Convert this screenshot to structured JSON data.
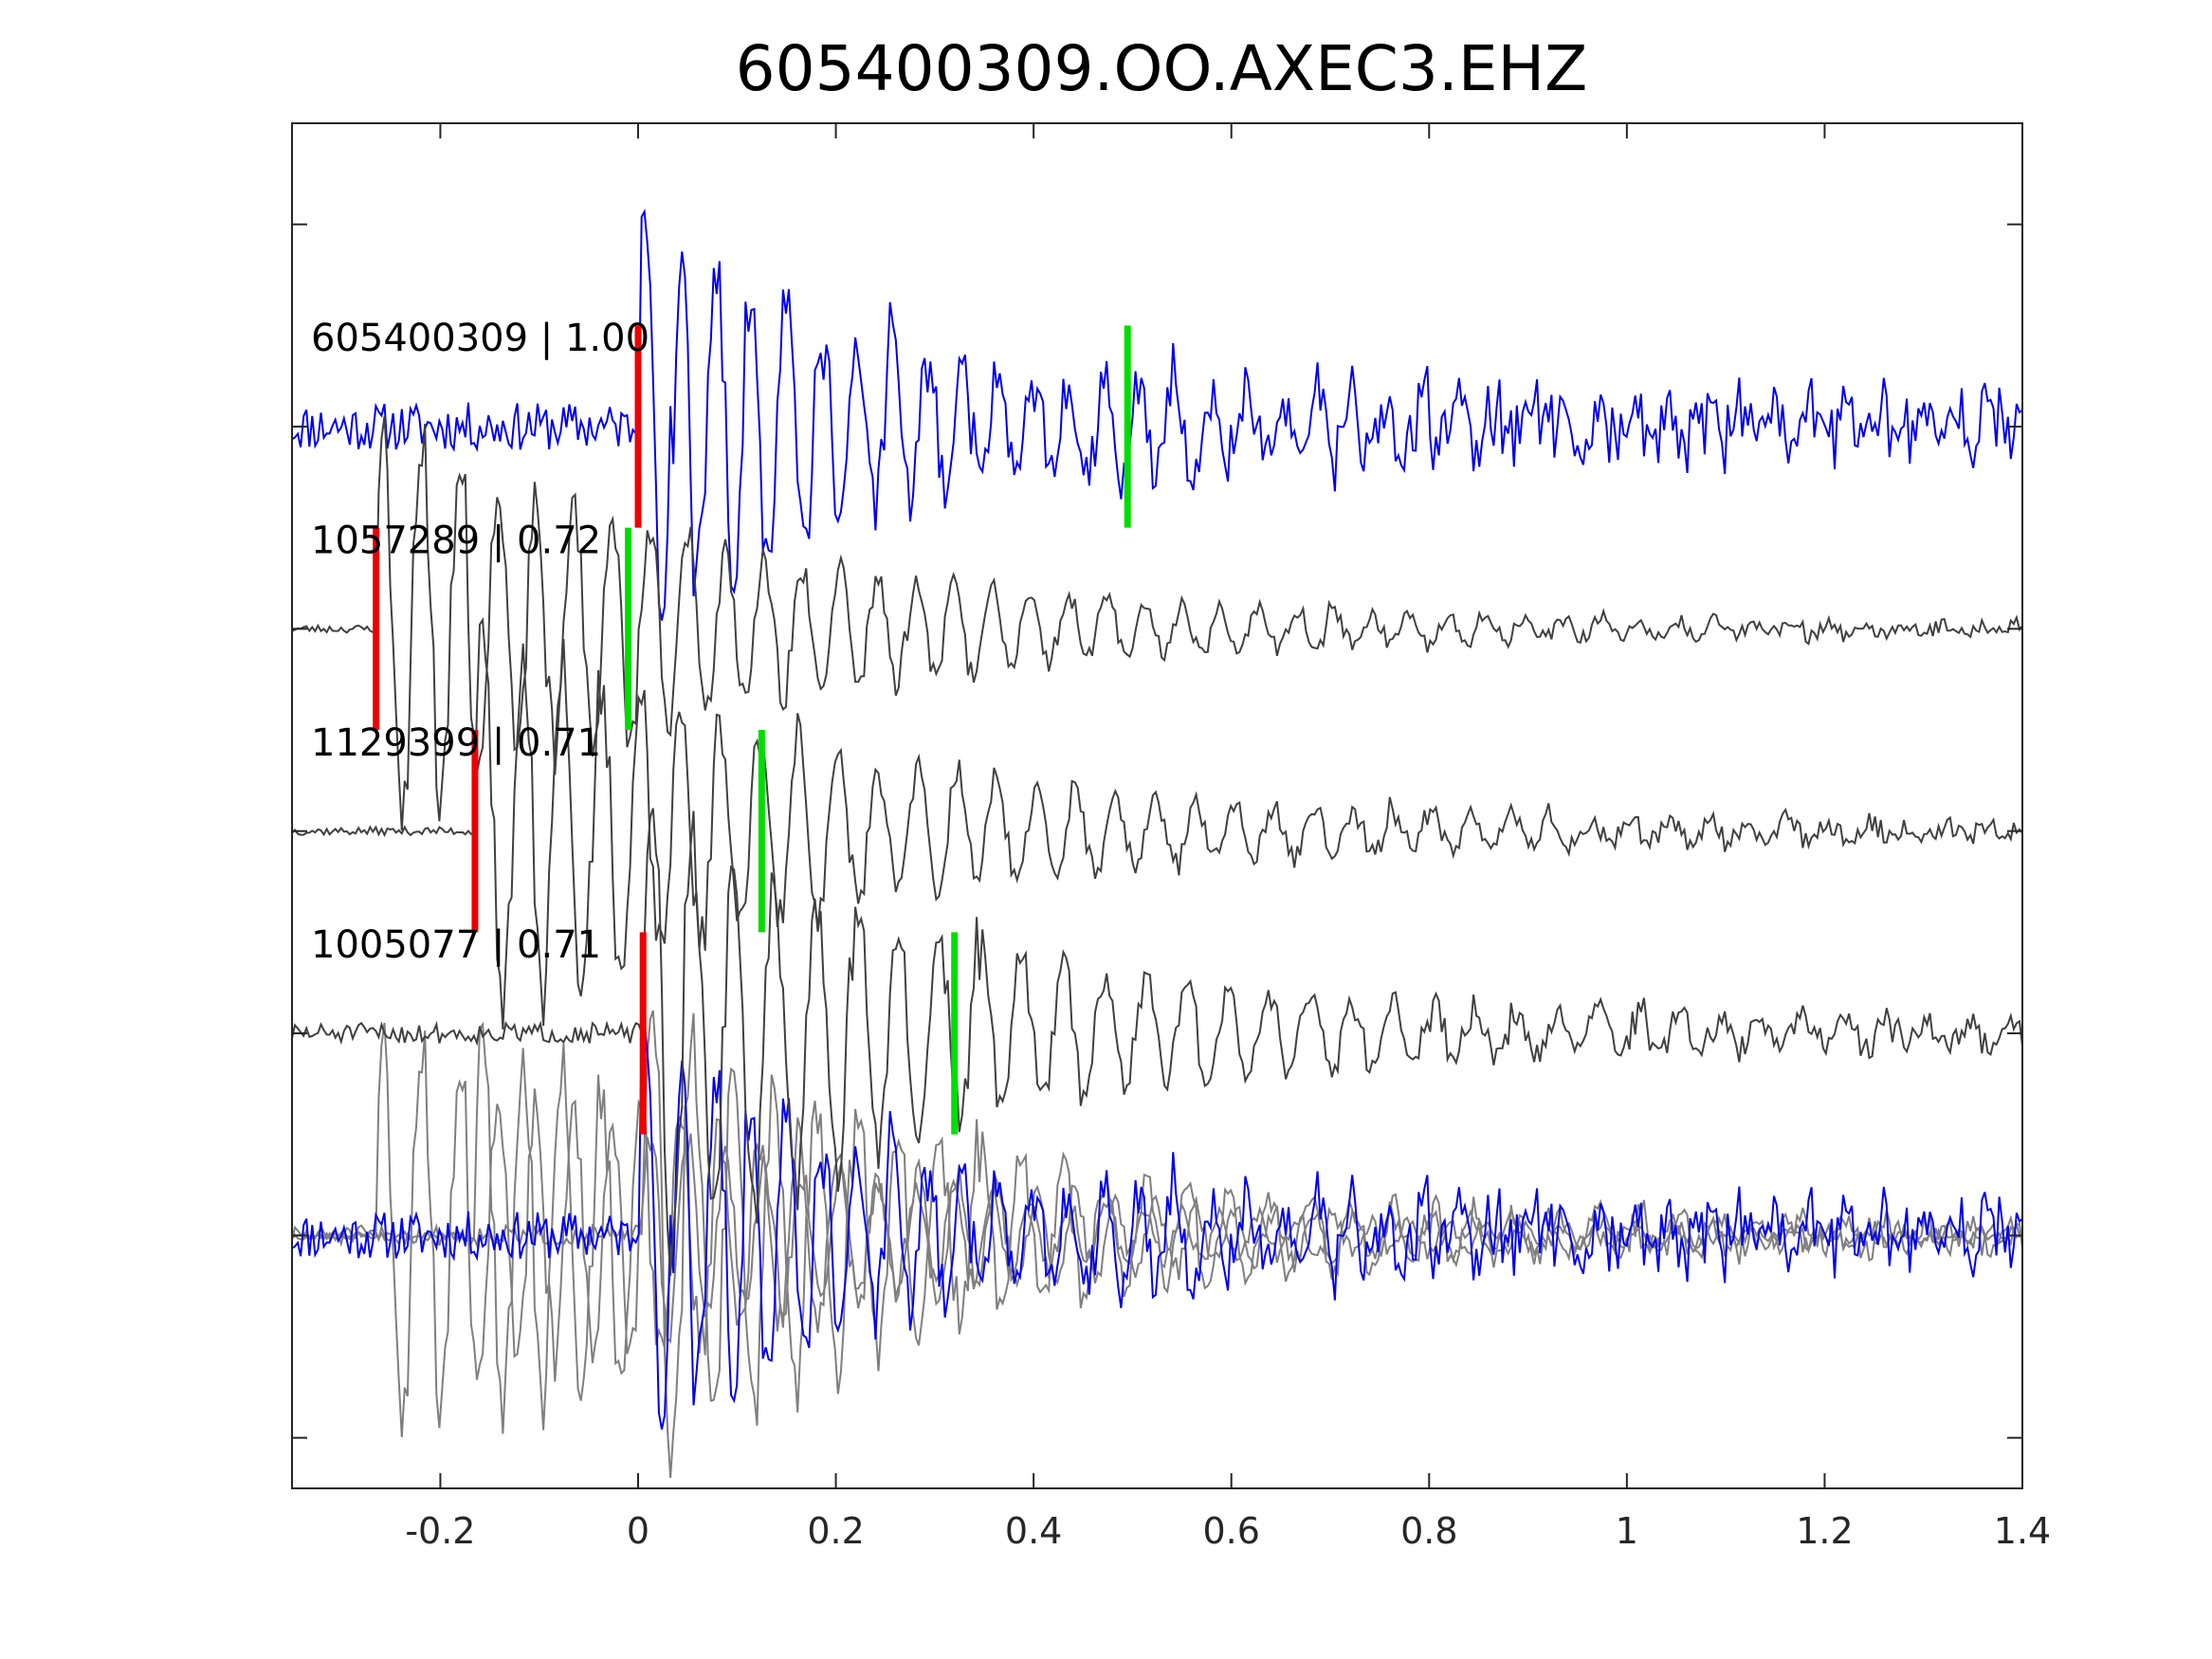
{
  "chart_data": {
    "type": "line",
    "title": "605400309.OO.AXEC3.EHZ",
    "xlabel": "",
    "ylabel": "",
    "xlim": [
      -0.35,
      1.4
    ],
    "ylim": [
      -6.25,
      0.5
    ],
    "x_ticks": [
      -0.2,
      0,
      0.2,
      0.4,
      0.6,
      0.8,
      1,
      1.2,
      1.4
    ],
    "x_tick_labels": [
      "-0.2",
      "0",
      "0.2",
      "0.4",
      "0.6",
      "0.8",
      "1",
      "1.2",
      "1.4"
    ],
    "y_ticks": [
      0,
      -1,
      -2,
      -3,
      -4,
      -5,
      -6
    ],
    "grid": false,
    "colors": {
      "reference": "#0000ee",
      "trace": "#404040",
      "stack_trace": "#7f7f7f",
      "p_pick": "#ee0000",
      "s_pick": "#00dd00"
    },
    "traces": [
      {
        "label": "605400309 | 1.00",
        "offset": -1,
        "role": "reference",
        "p_pick": 0.0,
        "s_pick": 0.495,
        "waveform": {
          "pre_noise": 0.12,
          "onset": 0.0,
          "peak_amp": 0.95,
          "p_decay": 0.18,
          "s_amp": 0.45,
          "coda_decay": 0.35,
          "tail_noise": 0.1,
          "freq": 28,
          "seed": 11
        }
      },
      {
        "label": "1057289 | 0.72",
        "offset": -2,
        "role": "trace",
        "p_pick": -0.265,
        "s_pick": -0.01,
        "waveform": {
          "pre_noise": 0.02,
          "onset": -0.265,
          "peak_amp": 0.9,
          "p_decay": 0.35,
          "s_amp": 0.4,
          "coda_decay": 0.25,
          "tail_noise": 0.03,
          "freq": 26,
          "seed": 23
        }
      },
      {
        "label": "1129399 | 0.71",
        "offset": -3,
        "role": "trace",
        "p_pick": -0.165,
        "s_pick": 0.125,
        "waveform": {
          "pre_noise": 0.02,
          "onset": -0.165,
          "peak_amp": 0.85,
          "p_decay": 0.3,
          "s_amp": 0.45,
          "coda_decay": 0.3,
          "tail_noise": 0.05,
          "freq": 25,
          "seed": 37
        }
      },
      {
        "label": "1005077 | 0.71",
        "offset": -4,
        "role": "trace",
        "p_pick": 0.005,
        "s_pick": 0.32,
        "waveform": {
          "pre_noise": 0.05,
          "onset": 0.005,
          "peak_amp": 0.95,
          "p_decay": 0.25,
          "s_amp": 0.5,
          "coda_decay": 0.35,
          "tail_noise": 0.05,
          "freq": 24,
          "seed": 51
        }
      }
    ],
    "stack": {
      "offset": -5,
      "description_order": [
        "trace",
        "trace",
        "trace",
        "reference"
      ]
    }
  }
}
